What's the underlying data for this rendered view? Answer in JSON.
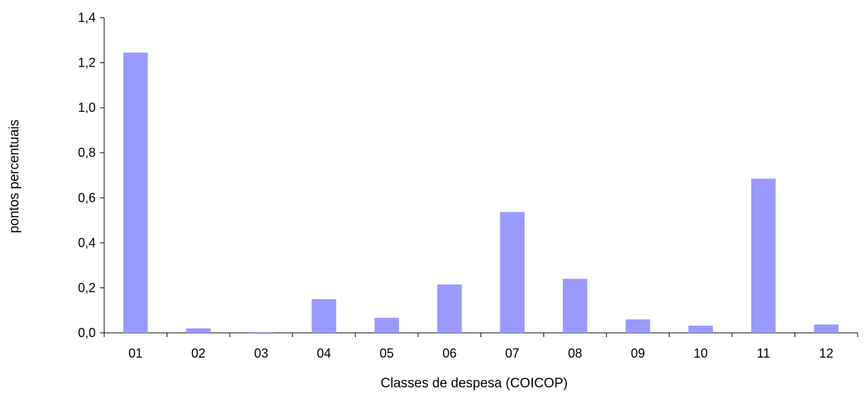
{
  "chart_data": {
    "type": "bar",
    "title": "",
    "xlabel": "Classes de despesa (COICOP)",
    "ylabel": "pontos percentuais",
    "categories": [
      "01",
      "02",
      "03",
      "04",
      "05",
      "06",
      "07",
      "08",
      "09",
      "10",
      "11",
      "12"
    ],
    "values": [
      1.245,
      0.02,
      0.003,
      0.15,
      0.067,
      0.215,
      0.537,
      0.24,
      0.06,
      0.032,
      0.685,
      0.037
    ],
    "ylim": [
      0,
      1.4
    ],
    "yticks": [
      0.0,
      0.2,
      0.4,
      0.6,
      0.8,
      1.0,
      1.2,
      1.4
    ],
    "ytick_labels": [
      "0,0",
      "0,2",
      "0,4",
      "0,6",
      "0,8",
      "1,0",
      "1,2",
      "1,4"
    ],
    "bar_color": "#9999ff",
    "grid": false,
    "legend": "none"
  }
}
